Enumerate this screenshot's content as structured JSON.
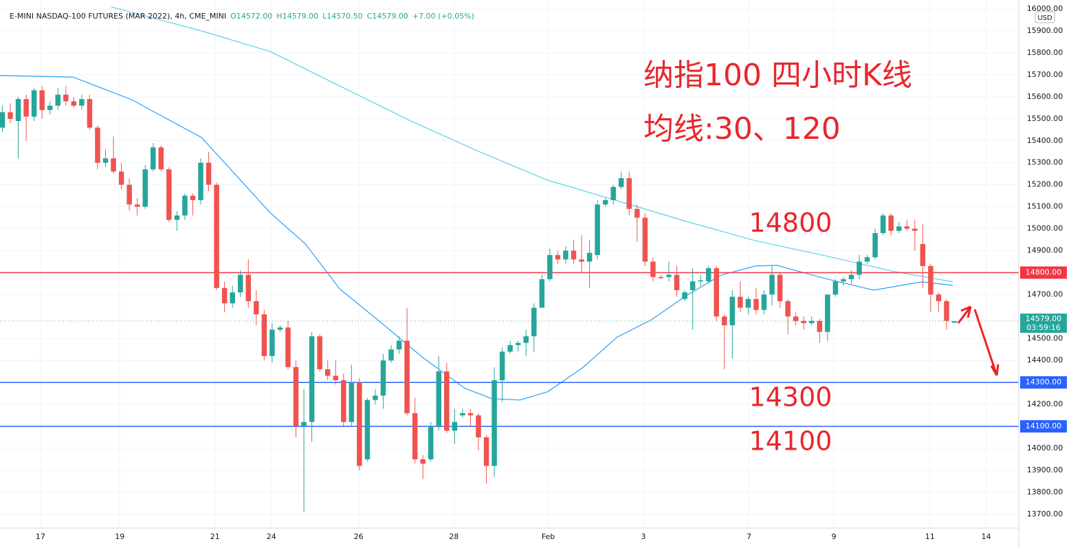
{
  "chart_data": {
    "type": "candlestick",
    "header": {
      "symbol": "E-MINI NASDAQ-100 FUTURES (MAR 2022), 4h, CME_MINI",
      "open": "O14572.00",
      "high": "H14579.00",
      "low": "L14570.50",
      "close": "C14579.00",
      "change": "+7.00 (+0.05%)"
    },
    "annotations": [
      "纳指100 四小时K线",
      "均线:30、120"
    ],
    "currency": "USD",
    "up_color": "#26a69a",
    "down_color": "#ef5350",
    "candles": [
      [
        15460,
        15560,
        15440,
        15530
      ],
      [
        15530,
        15570,
        15480,
        15500
      ],
      [
        15490,
        15600,
        15320,
        15590
      ],
      [
        15590,
        15610,
        15400,
        15510
      ],
      [
        15510,
        15640,
        15490,
        15630
      ],
      [
        15630,
        15650,
        15500,
        15540
      ],
      [
        15540,
        15580,
        15520,
        15560
      ],
      [
        15560,
        15640,
        15540,
        15610
      ],
      [
        15610,
        15650,
        15560,
        15580
      ],
      [
        15580,
        15600,
        15550,
        15560
      ],
      [
        15560,
        15610,
        15540,
        15590
      ],
      [
        15590,
        15610,
        15450,
        15460
      ],
      [
        15460,
        15470,
        15270,
        15300
      ],
      [
        15300,
        15360,
        15280,
        15320
      ],
      [
        15320,
        15420,
        15250,
        15260
      ],
      [
        15260,
        15300,
        15180,
        15200
      ],
      [
        15200,
        15230,
        15080,
        15110
      ],
      [
        15110,
        15140,
        15060,
        15100
      ],
      [
        15100,
        15290,
        15090,
        15270
      ],
      [
        15270,
        15390,
        15260,
        15370
      ],
      [
        15370,
        15380,
        15260,
        15270
      ],
      [
        15270,
        15280,
        15030,
        15040
      ],
      [
        15040,
        15080,
        14990,
        15060
      ],
      [
        15060,
        15160,
        15040,
        15150
      ],
      [
        15150,
        15160,
        15060,
        15130
      ],
      [
        15130,
        15320,
        15110,
        15300
      ],
      [
        15300,
        15350,
        15170,
        15200
      ],
      [
        15200,
        15210,
        14720,
        14730
      ],
      [
        14730,
        14760,
        14620,
        14660
      ],
      [
        14660,
        14740,
        14640,
        14710
      ],
      [
        14710,
        14810,
        14690,
        14790
      ],
      [
        14790,
        14860,
        14640,
        14670
      ],
      [
        14670,
        14720,
        14560,
        14610
      ],
      [
        14610,
        14630,
        14400,
        14420
      ],
      [
        14420,
        14570,
        14390,
        14540
      ],
      [
        14540,
        14560,
        14530,
        14550
      ],
      [
        14550,
        14580,
        14360,
        14370
      ],
      [
        14370,
        14400,
        14050,
        14100
      ],
      [
        14100,
        14270,
        13710,
        14120
      ],
      [
        14120,
        14530,
        14030,
        14510
      ],
      [
        14510,
        14520,
        14350,
        14360
      ],
      [
        14360,
        14400,
        14310,
        14330
      ],
      [
        14330,
        14400,
        14290,
        14310
      ],
      [
        14310,
        14340,
        14100,
        14120
      ],
      [
        14120,
        14380,
        14100,
        14300
      ],
      [
        14300,
        14320,
        13900,
        13920
      ],
      [
        13950,
        14230,
        13940,
        14220
      ],
      [
        14220,
        14270,
        14200,
        14240
      ],
      [
        14240,
        14430,
        14180,
        14400
      ],
      [
        14400,
        14470,
        14390,
        14450
      ],
      [
        14450,
        14510,
        14430,
        14490
      ],
      [
        14490,
        14640,
        14150,
        14160
      ],
      [
        14160,
        14230,
        13930,
        13950
      ],
      [
        13950,
        13970,
        13860,
        13930
      ],
      [
        13950,
        14120,
        13940,
        14100
      ],
      [
        14100,
        14420,
        14080,
        14350
      ],
      [
        14350,
        14390,
        14070,
        14080
      ],
      [
        14080,
        14180,
        14020,
        14120
      ],
      [
        14150,
        14180,
        14140,
        14160
      ],
      [
        14160,
        14180,
        14100,
        14150
      ],
      [
        14150,
        14160,
        13990,
        14050
      ],
      [
        14050,
        14060,
        13840,
        13920
      ],
      [
        13920,
        14370,
        13870,
        14310
      ],
      [
        14310,
        14460,
        14210,
        14440
      ],
      [
        14440,
        14490,
        14430,
        14470
      ],
      [
        14470,
        14490,
        14440,
        14480
      ],
      [
        14480,
        14540,
        14420,
        14510
      ],
      [
        14510,
        14660,
        14440,
        14640
      ],
      [
        14640,
        14790,
        14640,
        14770
      ],
      [
        14770,
        14910,
        14760,
        14880
      ],
      [
        14880,
        14900,
        14840,
        14860
      ],
      [
        14860,
        14920,
        14840,
        14900
      ],
      [
        14900,
        14950,
        14840,
        14860
      ],
      [
        14860,
        14970,
        14800,
        14850
      ],
      [
        14850,
        14950,
        14730,
        14890
      ],
      [
        14880,
        15130,
        14860,
        15110
      ],
      [
        15110,
        15140,
        15100,
        15130
      ],
      [
        15130,
        15200,
        15110,
        15190
      ],
      [
        15190,
        15260,
        15180,
        15230
      ],
      [
        15230,
        15260,
        15060,
        15090
      ],
      [
        15090,
        15110,
        14940,
        15050
      ],
      [
        15050,
        15070,
        14830,
        14850
      ],
      [
        14850,
        14870,
        14760,
        14780
      ],
      [
        14780,
        14790,
        14770,
        14775
      ],
      [
        14780,
        14850,
        14760,
        14790
      ],
      [
        14790,
        14830,
        14690,
        14720
      ],
      [
        14680,
        14720,
        14670,
        14710
      ],
      [
        14720,
        14820,
        14540,
        14760
      ],
      [
        14760,
        14790,
        14740,
        14765
      ],
      [
        14760,
        14830,
        14750,
        14820
      ],
      [
        14820,
        14830,
        14580,
        14600
      ],
      [
        14600,
        14610,
        14360,
        14560
      ],
      [
        14560,
        14720,
        14410,
        14690
      ],
      [
        14690,
        14760,
        14620,
        14640
      ],
      [
        14640,
        14690,
        14610,
        14680
      ],
      [
        14680,
        14730,
        14610,
        14630
      ],
      [
        14630,
        14720,
        14610,
        14700
      ],
      [
        14700,
        14830,
        14650,
        14790
      ],
      [
        14790,
        14800,
        14640,
        14670
      ],
      [
        14670,
        14680,
        14520,
        14600
      ],
      [
        14600,
        14620,
        14560,
        14580
      ],
      [
        14580,
        14600,
        14540,
        14570
      ],
      [
        14570,
        14600,
        14560,
        14580
      ],
      [
        14580,
        14590,
        14480,
        14530
      ],
      [
        14530,
        14700,
        14490,
        14700
      ],
      [
        14700,
        14770,
        14690,
        14760
      ],
      [
        14760,
        14780,
        14740,
        14770
      ],
      [
        14770,
        14810,
        14750,
        14790
      ],
      [
        14790,
        14880,
        14770,
        14850
      ],
      [
        14850,
        14880,
        14840,
        14870
      ],
      [
        14870,
        15000,
        14860,
        14980
      ],
      [
        14980,
        15070,
        14970,
        15060
      ],
      [
        15060,
        15070,
        14970,
        14990
      ],
      [
        14990,
        15030,
        14980,
        15010
      ],
      [
        15010,
        15040,
        14990,
        15000
      ],
      [
        15000,
        15040,
        14900,
        14990
      ],
      [
        14930,
        15020,
        14730,
        14830
      ],
      [
        14830,
        14840,
        14620,
        14700
      ],
      [
        14700,
        14710,
        14620,
        14670
      ],
      [
        14670,
        14680,
        14540,
        14580
      ],
      [
        14572,
        14579,
        14570.5,
        14579
      ]
    ],
    "series": [
      {
        "color": "#2a9df4",
        "x": [
          -0.3,
          8.9,
          16.3,
          25.1,
          33.8,
          38.2,
          42.5,
          47.8,
          53,
          58.3,
          61.7,
          65.2,
          68.7,
          73.1,
          77.5,
          81.8,
          86.2,
          90.6,
          94.9,
          97.6,
          103.7,
          109.8,
          115.9,
          119.8
        ],
        "values": [
          15697,
          15690,
          15587,
          15415,
          15071,
          14930,
          14726,
          14570,
          14413,
          14273,
          14226,
          14220,
          14257,
          14366,
          14507,
          14585,
          14695,
          14789,
          14830,
          14833,
          14773,
          14720,
          14758,
          14742
        ]
      },
      {
        "color": "#5ad1e6",
        "x": [
          13.7,
          25.1,
          33.8,
          42.5,
          51.3,
          60,
          68.7,
          77.5,
          86.2,
          94.9,
          103.7,
          112.4,
          119.8
        ],
        "values": [
          16010,
          15900,
          15806,
          15650,
          15493,
          15352,
          15221,
          15127,
          15033,
          14945,
          14877,
          14805,
          14758
        ]
      }
    ],
    "hlines": [
      {
        "value": 14800,
        "label": "14800.00",
        "color": "#f23645",
        "text": "14800"
      },
      {
        "value": 14300,
        "label": "14300.00",
        "color": "#2962ff",
        "text": "14300"
      },
      {
        "value": 14100,
        "label": "14100.00",
        "color": "#2962ff",
        "text": "14100"
      }
    ],
    "last_price": {
      "value": 14579,
      "label": "14579.00",
      "countdown": "03:59:16"
    },
    "ylim": [
      13637,
      16041
    ],
    "yticks": [
      {
        "value": 13700,
        "label": "13700.00"
      },
      {
        "value": 13800,
        "label": "13800.00"
      },
      {
        "value": 13900,
        "label": "13900.00"
      },
      {
        "value": 14000,
        "label": "14000.00"
      },
      {
        "value": 14200,
        "label": "14200.00"
      },
      {
        "value": 14400,
        "label": "14400.00"
      },
      {
        "value": 14500,
        "label": "14500.00"
      },
      {
        "value": 14700,
        "label": "14700.00"
      },
      {
        "value": 14900,
        "label": "14900.00"
      },
      {
        "value": 15000,
        "label": "15000.00"
      },
      {
        "value": 15100,
        "label": "15100.00"
      },
      {
        "value": 15200,
        "label": "15200.00"
      },
      {
        "value": 15300,
        "label": "15300.00"
      },
      {
        "value": 15400,
        "label": "15400.00"
      },
      {
        "value": 15500,
        "label": "15500.00"
      },
      {
        "value": 15600,
        "label": "15600.00"
      },
      {
        "value": 15700,
        "label": "15700.00"
      },
      {
        "value": 15800,
        "label": "15800.00"
      },
      {
        "value": 15900,
        "label": "15900.00"
      },
      {
        "value": 16000,
        "label": "16000.00"
      }
    ],
    "xlim": [
      -0.3,
      128.1
    ],
    "xticks": [
      {
        "value": 4.8,
        "label": "17"
      },
      {
        "value": 14.8,
        "label": "19"
      },
      {
        "value": 26.8,
        "label": "21"
      },
      {
        "value": 33.9,
        "label": "24"
      },
      {
        "value": 44.9,
        "label": "26"
      },
      {
        "value": 56.9,
        "label": "28"
      },
      {
        "value": 68.8,
        "label": "Feb"
      },
      {
        "value": 80.8,
        "label": "3"
      },
      {
        "value": 94.1,
        "label": "7"
      },
      {
        "value": 104.8,
        "label": "9"
      },
      {
        "value": 116.9,
        "label": "11"
      },
      {
        "value": 124,
        "label": "14"
      }
    ],
    "grid": true
  }
}
